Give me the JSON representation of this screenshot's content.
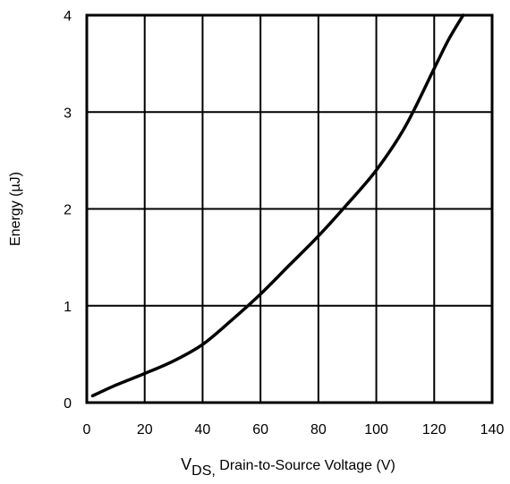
{
  "chart_data": {
    "type": "line",
    "title": "",
    "xlabel": {
      "main": "V",
      "sub": "DS,",
      "rest": " Drain-to-Source Voltage (V)"
    },
    "ylabel": "Energy (µJ)",
    "xlim": [
      0,
      140
    ],
    "ylim": [
      0,
      4
    ],
    "x_ticks": [
      0,
      20,
      40,
      60,
      80,
      100,
      120,
      140
    ],
    "y_ticks": [
      0,
      1,
      2,
      3,
      4
    ],
    "x_tick_labels": [
      "0",
      "20",
      "40",
      "60",
      "80",
      "100",
      "120",
      "140"
    ],
    "y_tick_labels": [
      "0",
      "1",
      "2",
      "3",
      "4"
    ],
    "grid": true,
    "legend": "none",
    "series": [
      {
        "x": [
          2,
          10,
          20,
          30,
          40,
          50,
          60,
          70,
          80,
          90,
          100,
          110,
          120,
          125,
          130
        ],
        "y": [
          0.07,
          0.18,
          0.3,
          0.43,
          0.6,
          0.85,
          1.12,
          1.42,
          1.72,
          2.05,
          2.4,
          2.85,
          3.45,
          3.75,
          4.0
        ]
      }
    ],
    "colors": {
      "line": "#000000",
      "grid": "#000000"
    }
  }
}
